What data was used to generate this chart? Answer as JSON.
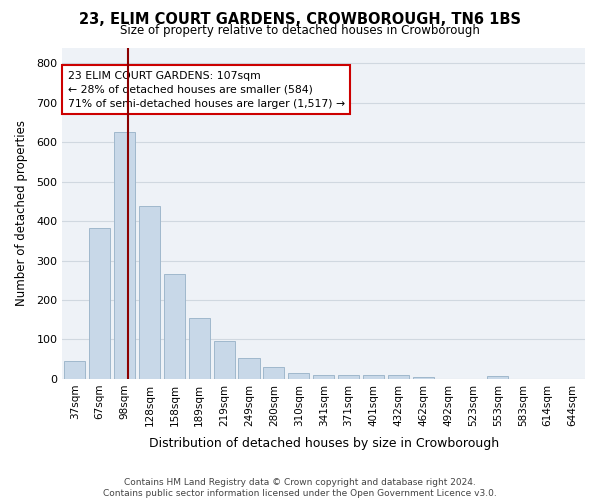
{
  "title": "23, ELIM COURT GARDENS, CROWBOROUGH, TN6 1BS",
  "subtitle": "Size of property relative to detached houses in Crowborough",
  "xlabel": "Distribution of detached houses by size in Crowborough",
  "ylabel": "Number of detached properties",
  "categories": [
    "37sqm",
    "67sqm",
    "98sqm",
    "128sqm",
    "158sqm",
    "189sqm",
    "219sqm",
    "249sqm",
    "280sqm",
    "310sqm",
    "341sqm",
    "371sqm",
    "401sqm",
    "432sqm",
    "462sqm",
    "492sqm",
    "523sqm",
    "553sqm",
    "583sqm",
    "614sqm",
    "644sqm"
  ],
  "values": [
    45,
    382,
    627,
    437,
    267,
    155,
    96,
    54,
    30,
    16,
    11,
    11,
    11,
    11,
    6,
    0,
    0,
    7,
    0,
    0,
    0
  ],
  "bar_color": "#c8d8e8",
  "bar_edge_color": "#a0b8cc",
  "grid_color": "#d0d8e0",
  "bg_color": "#eef2f7",
  "vline_color": "#8b0000",
  "annotation_text": "23 ELIM COURT GARDENS: 107sqm\n← 28% of detached houses are smaller (584)\n71% of semi-detached houses are larger (1,517) →",
  "annotation_box_color": "#ffffff",
  "annotation_box_edge_color": "#cc0000",
  "footer": "Contains HM Land Registry data © Crown copyright and database right 2024.\nContains public sector information licensed under the Open Government Licence v3.0.",
  "ylim": [
    0,
    840
  ],
  "yticks": [
    0,
    100,
    200,
    300,
    400,
    500,
    600,
    700,
    800
  ]
}
